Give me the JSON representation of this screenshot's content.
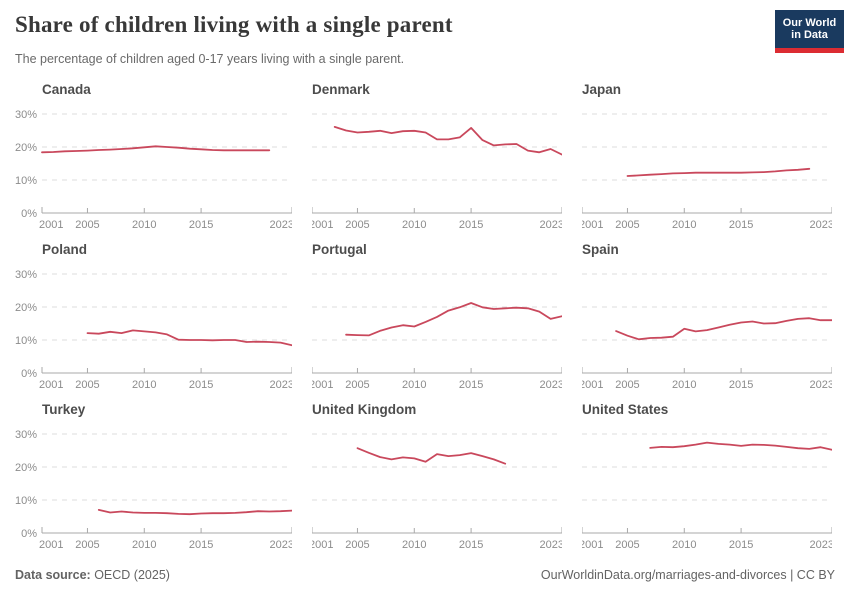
{
  "header": {
    "title": "Share of children living with a single parent",
    "subtitle": "The percentage of children aged 0-17 years living with a single parent.",
    "logo": {
      "line1": "Our World",
      "line2": "in Data"
    }
  },
  "footer": {
    "source_label": "Data source:",
    "source_value": " OECD (2025)",
    "link": "OurWorldinData.org/marriages-and-divorces",
    "license": " | CC BY"
  },
  "colors": {
    "line": "#c9485c",
    "grid": "#dcdcdc",
    "axis": "#a8a8a8",
    "tick_label": "#8c8c8c",
    "panel_title": "#4d4d4d",
    "logo_bg": "#1a3a5f",
    "logo_accent": "#dc2c32"
  },
  "chart_data": {
    "type": "line",
    "layout": "3x3 small multiples",
    "title": "Share of children living with a single parent",
    "xlim": [
      2001,
      2023
    ],
    "ylim": [
      0,
      30
    ],
    "x_ticks": [
      2001,
      2005,
      2010,
      2015,
      2023
    ],
    "y_ticks": [
      "0%",
      "10%",
      "20%",
      "30%"
    ],
    "grid": "dashed horizontal gridlines at 10/20/30, y labels on left column only",
    "series": [
      {
        "name": "Canada",
        "years": [
          2001,
          2002,
          2003,
          2004,
          2005,
          2006,
          2007,
          2008,
          2009,
          2010,
          2011,
          2012,
          2013,
          2014,
          2015,
          2016,
          2017,
          2018,
          2019,
          2020,
          2021
        ],
        "values": [
          18.4,
          18.5,
          18.7,
          18.8,
          18.9,
          19.1,
          19.2,
          19.4,
          19.6,
          19.9,
          20.2,
          20.0,
          19.8,
          19.5,
          19.3,
          19.1,
          19.0,
          19.0,
          19.0,
          19.0,
          19.0
        ]
      },
      {
        "name": "Denmark",
        "years": [
          2003,
          2004,
          2005,
          2006,
          2007,
          2008,
          2009,
          2010,
          2011,
          2012,
          2013,
          2014,
          2015,
          2016,
          2017,
          2018,
          2019,
          2020,
          2021,
          2022,
          2023
        ],
        "values": [
          26.1,
          25.0,
          24.4,
          24.6,
          24.9,
          24.2,
          24.8,
          24.9,
          24.4,
          22.3,
          22.3,
          22.9,
          25.8,
          22.1,
          20.5,
          20.8,
          20.9,
          18.9,
          18.4,
          19.4,
          17.7
        ]
      },
      {
        "name": "Japan",
        "years": [
          2005,
          2006,
          2007,
          2008,
          2009,
          2010,
          2011,
          2012,
          2013,
          2014,
          2015,
          2016,
          2017,
          2018,
          2019,
          2020,
          2021
        ],
        "values": [
          11.2,
          11.4,
          11.6,
          11.8,
          12.0,
          12.1,
          12.2,
          12.2,
          12.2,
          12.2,
          12.2,
          12.3,
          12.4,
          12.6,
          12.9,
          13.1,
          13.4
        ]
      },
      {
        "name": "Poland",
        "years": [
          2005,
          2006,
          2007,
          2008,
          2009,
          2010,
          2011,
          2012,
          2013,
          2014,
          2015,
          2016,
          2017,
          2018,
          2019,
          2020,
          2021,
          2022,
          2023
        ],
        "values": [
          12.1,
          11.9,
          12.5,
          12.1,
          12.9,
          12.6,
          12.3,
          11.7,
          10.1,
          10.0,
          10.0,
          9.9,
          10.0,
          10.0,
          9.4,
          9.5,
          9.4,
          9.2,
          8.4
        ]
      },
      {
        "name": "Portugal",
        "years": [
          2004,
          2005,
          2006,
          2007,
          2008,
          2009,
          2010,
          2011,
          2012,
          2013,
          2014,
          2015,
          2016,
          2017,
          2018,
          2019,
          2020,
          2021,
          2022,
          2023
        ],
        "values": [
          11.6,
          11.5,
          11.4,
          12.8,
          13.8,
          14.5,
          14.1,
          15.5,
          17.0,
          18.9,
          19.9,
          21.2,
          19.9,
          19.4,
          19.6,
          19.8,
          19.6,
          18.6,
          16.4,
          17.2
        ]
      },
      {
        "name": "Spain",
        "years": [
          2004,
          2005,
          2006,
          2007,
          2008,
          2009,
          2010,
          2011,
          2012,
          2013,
          2014,
          2015,
          2016,
          2017,
          2018,
          2019,
          2020,
          2021,
          2022,
          2023
        ],
        "values": [
          12.7,
          11.3,
          10.2,
          10.6,
          10.7,
          11.0,
          13.4,
          12.6,
          13.0,
          13.8,
          14.6,
          15.3,
          15.6,
          15.0,
          15.1,
          15.8,
          16.4,
          16.6,
          16.0,
          16.0
        ]
      },
      {
        "name": "Turkey",
        "years": [
          2006,
          2007,
          2008,
          2009,
          2010,
          2011,
          2012,
          2013,
          2014,
          2015,
          2016,
          2017,
          2018,
          2019,
          2020,
          2021,
          2022,
          2023
        ],
        "values": [
          7.0,
          6.2,
          6.5,
          6.2,
          6.1,
          6.1,
          6.0,
          5.8,
          5.7,
          5.9,
          6.0,
          6.0,
          6.1,
          6.3,
          6.6,
          6.5,
          6.6,
          6.8
        ]
      },
      {
        "name": "United Kingdom",
        "years": [
          2005,
          2006,
          2007,
          2008,
          2009,
          2010,
          2011,
          2012,
          2013,
          2014,
          2015,
          2016,
          2017,
          2018
        ],
        "values": [
          25.7,
          24.3,
          23.0,
          22.3,
          22.9,
          22.6,
          21.6,
          23.9,
          23.3,
          23.6,
          24.2,
          23.3,
          22.3,
          21.0
        ]
      },
      {
        "name": "United States",
        "years": [
          2007,
          2008,
          2009,
          2010,
          2011,
          2012,
          2013,
          2014,
          2015,
          2016,
          2017,
          2018,
          2019,
          2020,
          2021,
          2022,
          2023
        ],
        "values": [
          25.8,
          26.1,
          26.0,
          26.3,
          26.8,
          27.4,
          27.0,
          26.8,
          26.4,
          26.8,
          26.7,
          26.5,
          26.1,
          25.7,
          25.5,
          26.0,
          25.2
        ]
      }
    ]
  }
}
